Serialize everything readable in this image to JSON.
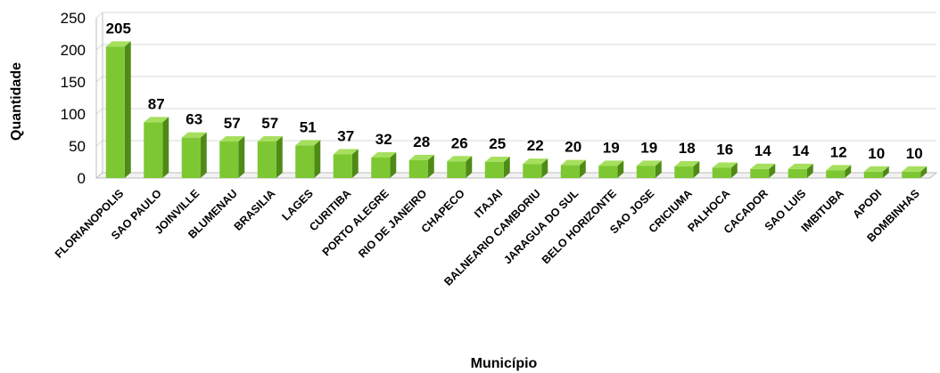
{
  "chart_data": {
    "type": "bar",
    "style": "3d-column",
    "title": "",
    "xlabel": "Município",
    "ylabel": "Quantidade",
    "ylim": [
      0,
      250
    ],
    "yticks": [
      0,
      50,
      100,
      150,
      200,
      250
    ],
    "grid": true,
    "legend": "none",
    "categories": [
      "FLORIANOPOLIS",
      "SAO PAULO",
      "JOINVILLE",
      "BLUMENAU",
      "BRASILIA",
      "LAGES",
      "CURITIBA",
      "PORTO ALEGRE",
      "RIO DE JANEIRO",
      "CHAPECO",
      "ITAJAI",
      "BALNEARIO CAMBORIU",
      "JARAGUA DO SUL",
      "BELO HORIZONTE",
      "SAO JOSE",
      "CRICIUMA",
      "PALHOCA",
      "CACADOR",
      "SAO LUIS",
      "IMBITUBA",
      "APODI",
      "BOMBINHAS"
    ],
    "values": [
      205,
      87,
      63,
      57,
      57,
      51,
      37,
      32,
      28,
      26,
      25,
      22,
      20,
      19,
      19,
      18,
      16,
      14,
      14,
      12,
      10,
      10
    ],
    "colors": {
      "bar_front": "#7dc832",
      "bar_side": "#4f8a17",
      "bar_top": "#a6df5e",
      "grid": "#d9d9d9",
      "axis": "#bfbfbf"
    }
  }
}
